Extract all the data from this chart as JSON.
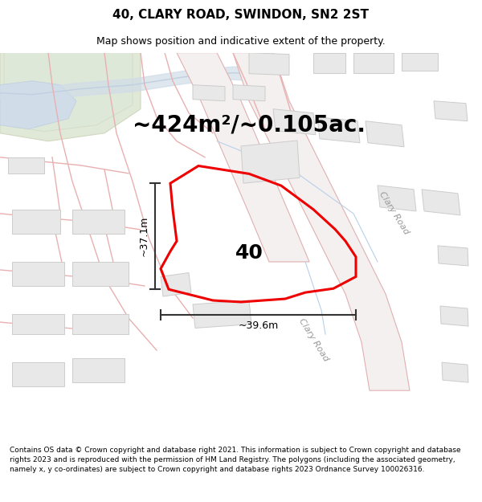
{
  "title": "40, CLARY ROAD, SWINDON, SN2 2ST",
  "subtitle": "Map shows position and indicative extent of the property.",
  "area_label": "~424m²/~0.105ac.",
  "number_label": "40",
  "dim_vertical": "~37.1m",
  "dim_horizontal": "~39.6m",
  "road_label_upper": "Clary Road",
  "road_label_lower": "Clary Road",
  "footer_text": "Contains OS data © Crown copyright and database right 2021. This information is subject to Crown copyright and database rights 2023 and is reproduced with the permission of HM Land Registry. The polygons (including the associated geometry, namely x, y co-ordinates) are subject to Crown copyright and database rights 2023 Ordnance Survey 100026316.",
  "bg_color": "#ffffff",
  "map_bg": "#ffffff",
  "highlight_color": "#ee0000",
  "dim_line_color": "#333333",
  "road_fill": "#f5f0f0",
  "road_stroke": "#e8b8b8",
  "road_stroke2": "#f0d0d0",
  "bldg_fill": "#e8e8e8",
  "bldg_stroke": "#cccccc",
  "green_fill": "#e0e8d8",
  "green_stroke": "#d0d8c0",
  "water_fill": "#d0dce8",
  "blue_line": "#c0d0e0",
  "title_fontsize": 11,
  "subtitle_fontsize": 9,
  "footer_fontsize": 6.5,
  "area_fontsize": 20,
  "number_fontsize": 18,
  "dim_fontsize": 9,
  "road_label_fontsize": 8
}
